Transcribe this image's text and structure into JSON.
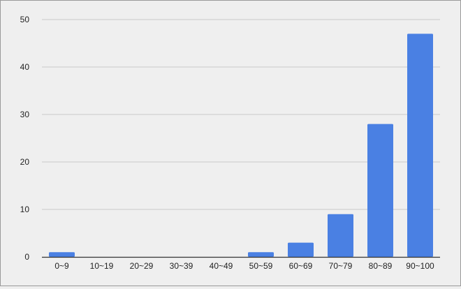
{
  "chart_data": {
    "type": "bar",
    "title": "",
    "xlabel": "",
    "ylabel": "",
    "categories": [
      "0~9",
      "10~19",
      "20~29",
      "30~39",
      "40~49",
      "50~59",
      "60~69",
      "70~79",
      "80~89",
      "90~100"
    ],
    "values": [
      1,
      0,
      0,
      0,
      0,
      1,
      3,
      9,
      28,
      47
    ],
    "ylim": [
      0,
      50
    ],
    "yticks": [
      0,
      10,
      20,
      30,
      40,
      50
    ],
    "grid": true,
    "legend": "none",
    "colors": {
      "bar": "#4a80e3",
      "background": "#efefef",
      "grid": "#c8c8c8",
      "axis": "#333333"
    }
  }
}
